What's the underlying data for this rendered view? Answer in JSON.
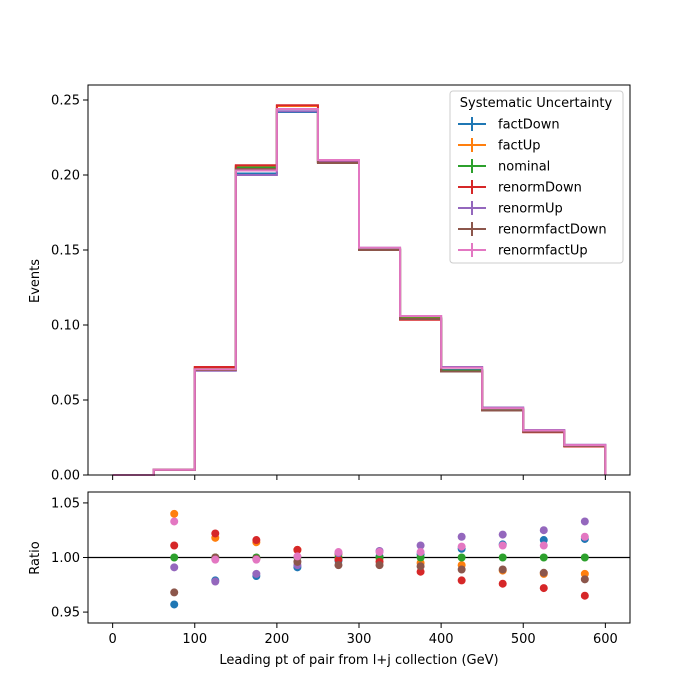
{
  "chart_data": [
    {
      "type": "step",
      "xlabel": "",
      "ylabel": "Events",
      "xlim": [
        -30,
        630
      ],
      "ylim": [
        0,
        0.26
      ],
      "x_ticks": [
        0,
        100,
        200,
        300,
        400,
        500,
        600
      ],
      "y_ticks": [
        0.0,
        0.05,
        0.1,
        0.15,
        0.2,
        0.25
      ],
      "y_tick_labels": [
        "0.00",
        "0.05",
        "0.10",
        "0.15",
        "0.20",
        "0.25"
      ],
      "bin_edges": [
        0,
        50,
        100,
        150,
        200,
        250,
        300,
        350,
        400,
        450,
        500,
        550,
        600
      ],
      "legend": {
        "title": "Systematic Uncertainty",
        "position": "top-right"
      },
      "series": [
        {
          "name": "factDown",
          "color": "#1f77b4",
          "values": [
            0,
            0.0035,
            0.0705,
            0.201,
            0.242,
            0.2085,
            0.1505,
            0.1045,
            0.07,
            0.044,
            0.0295,
            0.02
          ]
        },
        {
          "name": "factUp",
          "color": "#ff7f0e",
          "values": [
            0,
            0.0035,
            0.0715,
            0.206,
            0.246,
            0.209,
            0.151,
            0.105,
            0.0695,
            0.0435,
            0.0288,
            0.0193
          ]
        },
        {
          "name": "nominal",
          "color": "#2ca02c",
          "values": [
            0,
            0.0035,
            0.0705,
            0.205,
            0.244,
            0.2085,
            0.1505,
            0.1045,
            0.0695,
            0.0435,
            0.029,
            0.0195
          ]
        },
        {
          "name": "renormDown",
          "color": "#d62728",
          "values": [
            0,
            0.0035,
            0.072,
            0.2065,
            0.2465,
            0.2085,
            0.15,
            0.1035,
            0.069,
            0.043,
            0.0285,
            0.019
          ]
        },
        {
          "name": "renormUp",
          "color": "#9467bd",
          "values": [
            0,
            0.0035,
            0.0695,
            0.2,
            0.2425,
            0.2095,
            0.1515,
            0.106,
            0.072,
            0.045,
            0.03,
            0.0202
          ]
        },
        {
          "name": "renormfactDown",
          "color": "#8c564b",
          "values": [
            0,
            0.0035,
            0.07,
            0.204,
            0.244,
            0.208,
            0.15,
            0.104,
            0.069,
            0.043,
            0.0288,
            0.0193
          ]
        },
        {
          "name": "renormfactUp",
          "color": "#e377c2",
          "values": [
            0,
            0.0035,
            0.0705,
            0.203,
            0.244,
            0.21,
            0.1515,
            0.106,
            0.0715,
            0.0445,
            0.0297,
            0.0199
          ]
        }
      ]
    },
    {
      "type": "scatter",
      "xlabel": "Leading pt of pair from l+j collection (GeV)",
      "ylabel": "Ratio",
      "xlim": [
        -30,
        630
      ],
      "ylim": [
        0.94,
        1.06
      ],
      "x_ticks": [
        0,
        100,
        200,
        300,
        400,
        500,
        600
      ],
      "x_tick_labels": [
        "0",
        "100",
        "200",
        "300",
        "400",
        "500",
        "600"
      ],
      "y_ticks": [
        0.95,
        1.0,
        1.05
      ],
      "y_tick_labels": [
        "0.95",
        "1.00",
        "1.05"
      ],
      "reference_line": 1.0,
      "x": [
        75,
        125,
        175,
        225,
        275,
        325,
        375,
        425,
        475,
        525,
        575
      ],
      "series": [
        {
          "name": "factDown",
          "color": "#1f77b4",
          "values": [
            0.957,
            0.979,
            0.983,
            0.991,
            0.997,
            1.001,
            1.003,
            1.008,
            1.012,
            1.016,
            1.017
          ]
        },
        {
          "name": "factUp",
          "color": "#ff7f0e",
          "values": [
            1.04,
            1.018,
            1.014,
            1.007,
            1.003,
            0.999,
            0.995,
            0.993,
            0.988,
            0.985,
            0.985
          ]
        },
        {
          "name": "nominal",
          "color": "#2ca02c",
          "values": [
            1.0,
            1.0,
            1.0,
            1.0,
            1.0,
            1.0,
            1.0,
            1.0,
            1.0,
            1.0,
            1.0
          ]
        },
        {
          "name": "renormDown",
          "color": "#d62728",
          "values": [
            1.011,
            1.022,
            1.016,
            1.007,
            0.998,
            0.996,
            0.987,
            0.979,
            0.976,
            0.972,
            0.965
          ]
        },
        {
          "name": "renormUp",
          "color": "#9467bd",
          "values": [
            0.991,
            0.978,
            0.985,
            0.993,
            1.004,
            1.006,
            1.011,
            1.019,
            1.021,
            1.025,
            1.033
          ]
        },
        {
          "name": "renormfactDown",
          "color": "#8c564b",
          "values": [
            0.968,
            1.0,
            0.999,
            0.996,
            0.993,
            0.993,
            0.992,
            0.989,
            0.989,
            0.986,
            0.98
          ]
        },
        {
          "name": "renormfactUp",
          "color": "#e377c2",
          "values": [
            1.033,
            0.998,
            0.998,
            1.001,
            1.005,
            1.005,
            1.005,
            1.01,
            1.011,
            1.011,
            1.019
          ]
        }
      ]
    }
  ]
}
